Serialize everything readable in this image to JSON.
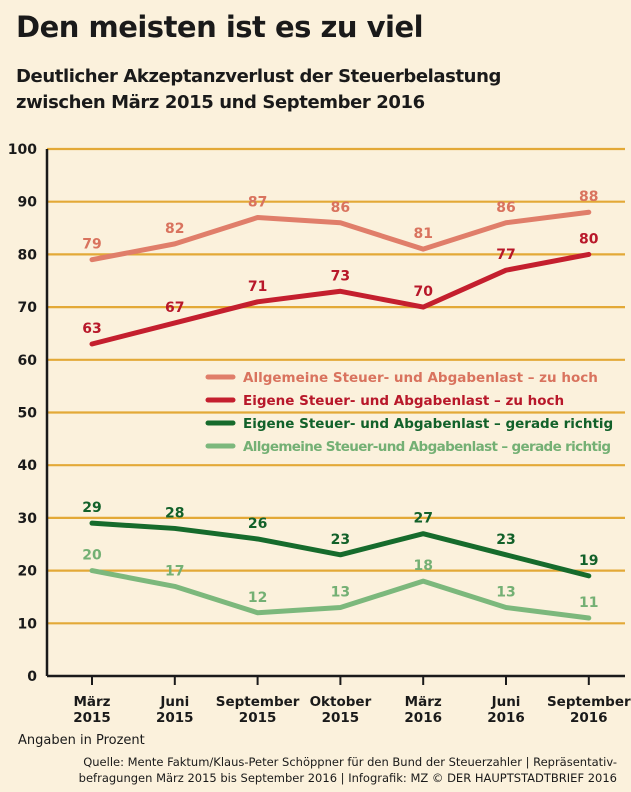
{
  "chart_data": {
    "type": "line",
    "title": "Den meisten ist es zu viel",
    "subtitle": [
      "Deutlicher Akzeptanzverlust der Steuerbelastung",
      "zwischen März 2015 und September 2016"
    ],
    "categories": [
      [
        "März",
        "2015"
      ],
      [
        "Juni",
        "2015"
      ],
      [
        "September",
        "2015"
      ],
      [
        "Oktober",
        "2015"
      ],
      [
        "März",
        "2016"
      ],
      [
        "Juni",
        "2016"
      ],
      [
        "September",
        "2016"
      ]
    ],
    "ylim": [
      0,
      100
    ],
    "yticks": [
      0,
      10,
      20,
      30,
      40,
      50,
      60,
      70,
      80,
      90,
      100
    ],
    "grid": true,
    "legend_position": "right-middle",
    "series": [
      {
        "name": "Allgemeine Steuer- und Abgabenlast – zu hoch",
        "color": "#e07e6a",
        "label_color": "#d9735e",
        "values": [
          79,
          82,
          87,
          86,
          81,
          86,
          88
        ],
        "labels": [
          "79",
          "82",
          "87",
          "86",
          "81",
          "86",
          "88"
        ]
      },
      {
        "name": "Eigene Steuer- und Abgabenlast – zu hoch",
        "color": "#c41f2e",
        "label_color": "#b8182a",
        "values": [
          63,
          67,
          71,
          73,
          70,
          77,
          80
        ],
        "labels": [
          "63",
          "67",
          "71",
          "73",
          "70",
          "77",
          "80"
        ]
      },
      {
        "name": "Eigene Steuer- und Abgabenlast – gerade richtig",
        "color": "#166b2c",
        "label_color": "#12612a",
        "values": [
          29,
          28,
          26,
          23,
          27,
          23,
          19
        ],
        "labels": [
          "29",
          "28",
          "26",
          "23",
          "27",
          "23",
          "19"
        ]
      },
      {
        "name": "Allgemeine Steuer-und Abgabenlast – gerade richtig",
        "color": "#7cb87c",
        "label_color": "#74b074",
        "values": [
          20,
          17,
          12,
          13,
          18,
          13,
          11
        ],
        "labels": [
          "20",
          "17",
          "12",
          "13",
          "18",
          "13",
          "11"
        ]
      }
    ],
    "note": "Angaben in Prozent",
    "source": [
      "Quelle: Mente Faktum/Klaus-Peter Schöppner für den Bund der Steuerzahler | Repräsentativ-",
      "befragungen März 2015 bis September 2016  |  Infografik: MZ © DER HAUPTSTADTBRIEF 2016"
    ]
  },
  "colors": {
    "background": "#fbf1dc",
    "grid": "#e3a937",
    "axis": "#1a1a1a",
    "text": "#1a1a1a"
  }
}
